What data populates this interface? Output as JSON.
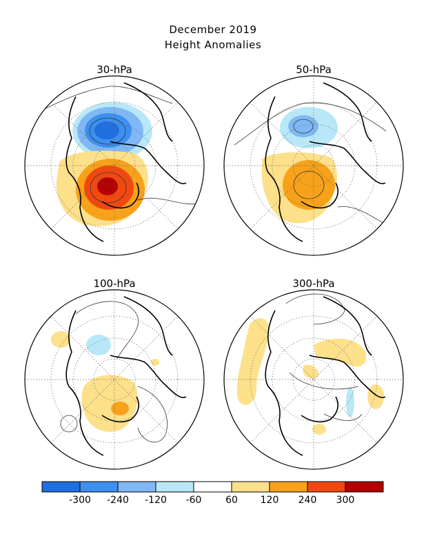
{
  "title": {
    "line1": "December 2019",
    "line2": "Height Anomalies"
  },
  "panels": [
    {
      "label": "30-hPa"
    },
    {
      "label": "50-hPa"
    },
    {
      "label": "100-hPa"
    },
    {
      "label": "300-hPa"
    }
  ],
  "colorbar": {
    "labels": [
      "-300",
      "-240",
      "-120",
      "-60",
      "60",
      "120",
      "240",
      "300"
    ],
    "colors": [
      "#1f6fe0",
      "#3d8ff0",
      "#7fb8f5",
      "#b8e8f8",
      "#ffffff",
      "#fde08a",
      "#f7a21a",
      "#f24810",
      "#b30000"
    ]
  },
  "colors": {
    "coast": "#000000",
    "contour": "#333333",
    "grid": "#666666"
  }
}
